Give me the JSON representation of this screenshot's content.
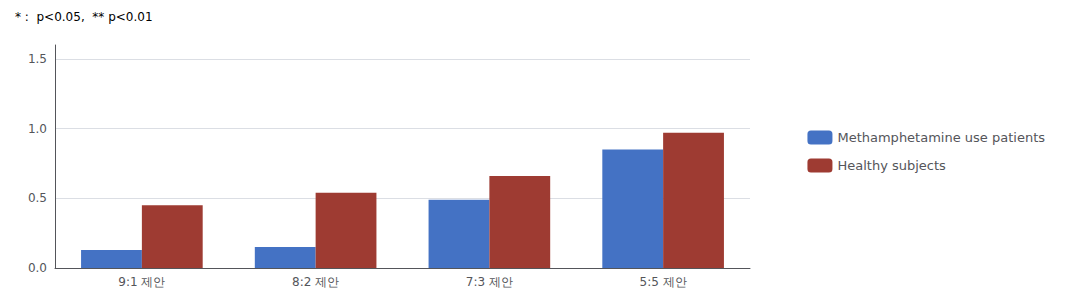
{
  "chart_data": {
    "type": "bar",
    "annotation": "* :  p<0.05,  ** p<0.01",
    "categories": [
      "9:1 제안",
      "8:2 제안",
      "7:3 제안",
      "5:5 제안"
    ],
    "series": [
      {
        "name": "Methamphetamine use patients",
        "color": "#4472C4",
        "values": [
          0.13,
          0.15,
          0.49,
          0.85
        ]
      },
      {
        "name": "Healthy subjects",
        "color": "#9E3B32",
        "values": [
          0.45,
          0.54,
          0.66,
          0.97
        ]
      }
    ],
    "ylim": [
      0,
      1.6
    ],
    "yticks": [
      {
        "value": 0,
        "label": "0.0"
      },
      0.5,
      {
        "value": 1,
        "label": "1.0"
      },
      1.5
    ],
    "grid": true,
    "legend": "right"
  }
}
